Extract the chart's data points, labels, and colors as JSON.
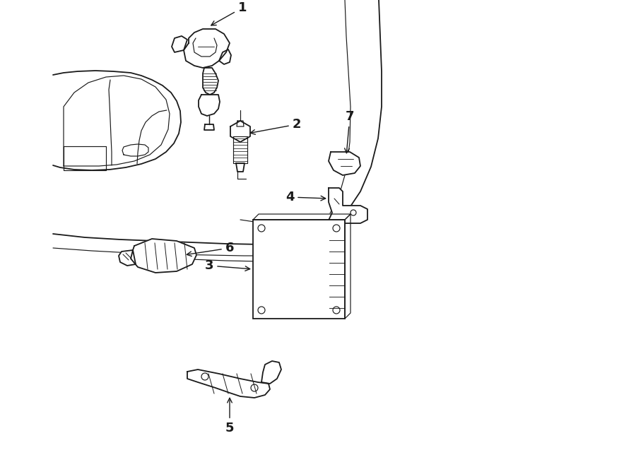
{
  "background_color": "#ffffff",
  "line_color": "#1a1a1a",
  "text_color": "#1a1a1a",
  "fig_width": 9.0,
  "fig_height": 6.61,
  "dpi": 100
}
